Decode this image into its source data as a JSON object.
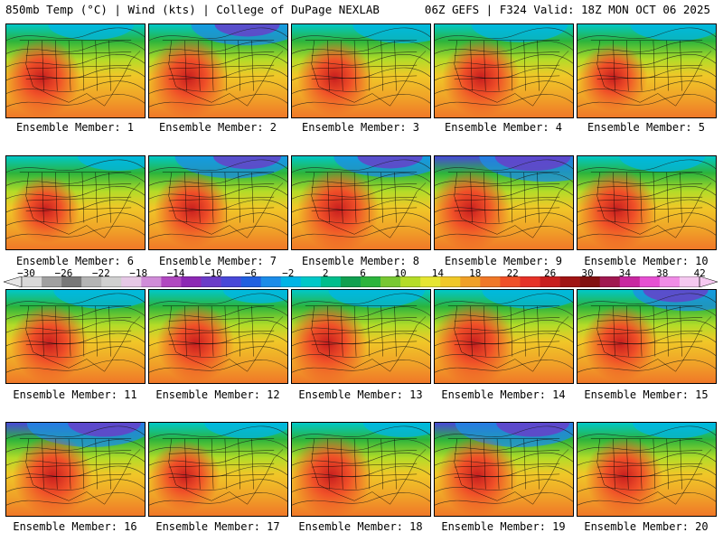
{
  "header": {
    "left": "850mb Temp (°C) | Wind (kts) | College of DuPage NEXLAB",
    "right": "06Z GEFS | F324 Valid: 18Z MON OCT 06 2025"
  },
  "members": [
    {
      "label": "Ensemble Member: 1",
      "cold": 0.3,
      "warm": 0.75
    },
    {
      "label": "Ensemble Member: 2",
      "cold": 0.55,
      "warm": 0.8
    },
    {
      "label": "Ensemble Member: 3",
      "cold": 0.45,
      "warm": 0.7
    },
    {
      "label": "Ensemble Member: 4",
      "cold": 0.4,
      "warm": 0.75
    },
    {
      "label": "Ensemble Member: 5",
      "cold": 0.35,
      "warm": 0.55
    },
    {
      "label": "Ensemble Member: 6",
      "cold": 0.25,
      "warm": 0.55
    },
    {
      "label": "Ensemble Member: 7",
      "cold": 0.6,
      "warm": 0.7
    },
    {
      "label": "Ensemble Member: 8",
      "cold": 0.55,
      "warm": 0.85
    },
    {
      "label": "Ensemble Member: 9",
      "cold": 0.75,
      "warm": 0.8
    },
    {
      "label": "Ensemble Member: 10",
      "cold": 0.3,
      "warm": 0.8
    },
    {
      "label": "Ensemble Member: 11",
      "cold": 0.45,
      "warm": 0.75
    },
    {
      "label": "Ensemble Member: 12",
      "cold": 0.2,
      "warm": 0.75
    },
    {
      "label": "Ensemble Member: 13",
      "cold": 0.4,
      "warm": 0.8
    },
    {
      "label": "Ensemble Member: 14",
      "cold": 0.45,
      "warm": 0.85
    },
    {
      "label": "Ensemble Member: 15",
      "cold": 0.55,
      "warm": 0.7
    },
    {
      "label": "Ensemble Member: 16",
      "cold": 0.7,
      "warm": 0.8
    },
    {
      "label": "Ensemble Member: 17",
      "cold": 0.3,
      "warm": 0.6
    },
    {
      "label": "Ensemble Member: 18",
      "cold": 0.25,
      "warm": 0.85
    },
    {
      "label": "Ensemble Member: 19",
      "cold": 0.7,
      "warm": 0.8
    },
    {
      "label": "Ensemble Member: 20",
      "cold": 0.3,
      "warm": 0.75
    }
  ],
  "colorbar": {
    "labels": [
      "−30",
      "−26",
      "−22",
      "−18",
      "−14",
      "−10",
      "−6",
      "−2",
      "2",
      "6",
      "10",
      "14",
      "18",
      "22",
      "26",
      "30",
      "34",
      "38",
      "42"
    ],
    "colors": [
      "#d9d9d9",
      "#a0a0a0",
      "#787878",
      "#b4b4b4",
      "#d0d0d0",
      "#e6c8e6",
      "#d08cd8",
      "#b048c0",
      "#8c28b4",
      "#6a3cc8",
      "#4848d8",
      "#2060e0",
      "#1c8ce8",
      "#00b4e6",
      "#00c8c8",
      "#00be8c",
      "#10a050",
      "#2cb43c",
      "#78c832",
      "#b4dc28",
      "#e6e632",
      "#f0c828",
      "#f0a028",
      "#f07828",
      "#f05028",
      "#e63228",
      "#c81e1e",
      "#a01414",
      "#821010",
      "#a01850",
      "#c828a0",
      "#e650d2",
      "#f08ce6",
      "#f5c8f0"
    ]
  }
}
